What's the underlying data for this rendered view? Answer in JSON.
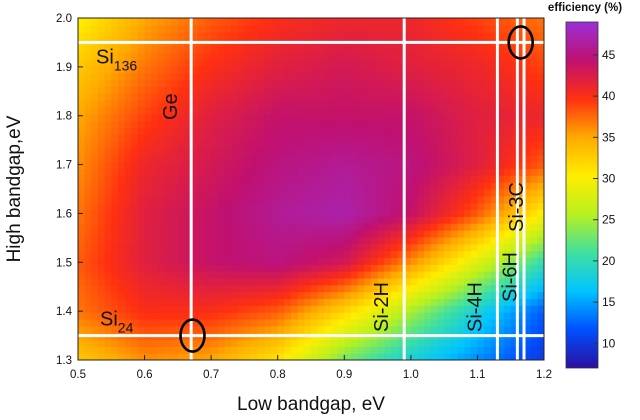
{
  "chart_data": {
    "type": "heatmap",
    "xlabel": "Low bandgap, eV",
    "ylabel": "High bandgap,eV",
    "xlim": [
      0.5,
      1.2
    ],
    "ylim": [
      1.3,
      2.0
    ],
    "x_ticks": [
      "0.5",
      "0.6",
      "0.7",
      "0.8",
      "0.9",
      "1.0",
      "1.1",
      "1.2"
    ],
    "y_ticks": [
      "1.3",
      "1.4",
      "1.5",
      "1.6",
      "1.7",
      "1.8",
      "1.9",
      "2.0"
    ],
    "colorbar": {
      "title": "efficiency (%)",
      "range": [
        7,
        49
      ],
      "ticks": [
        "10",
        "15",
        "20",
        "25",
        "30",
        "35",
        "40",
        "45"
      ],
      "colors": [
        "#2b0fa0",
        "#0050ff",
        "#00c4ff",
        "#40e0a0",
        "#b8f020",
        "#ffee00",
        "#ffaa00",
        "#ff3010",
        "#c01070",
        "#9a30d8"
      ]
    },
    "peak": {
      "x": 0.95,
      "y": 1.62,
      "value": 48
    },
    "efficiency_grid": {
      "x": [
        0.5,
        0.6,
        0.7,
        0.8,
        0.9,
        1.0,
        1.1,
        1.2
      ],
      "y": [
        1.3,
        1.4,
        1.5,
        1.6,
        1.7,
        1.8,
        1.9,
        2.0
      ],
      "values": [
        [
          33,
          36,
          35,
          31,
          23,
          18,
          14,
          10
        ],
        [
          37,
          40,
          40,
          38,
          32,
          25,
          18,
          12
        ],
        [
          38,
          42,
          44,
          45,
          43,
          36,
          28,
          20
        ],
        [
          37,
          42,
          44,
          46,
          47,
          44,
          38,
          30
        ],
        [
          36,
          41,
          43,
          45,
          46,
          45,
          42,
          38
        ],
        [
          35,
          39,
          42,
          44,
          44,
          44,
          42,
          41
        ],
        [
          33,
          37,
          40,
          42,
          43,
          42,
          41,
          39
        ],
        [
          30,
          35,
          38,
          40,
          41,
          41,
          39,
          37
        ]
      ]
    },
    "vertical_lines": [
      {
        "label": "Ge",
        "x": 0.67
      },
      {
        "label": "Si-2H",
        "x": 0.99
      },
      {
        "label": "Si-4H",
        "x": 1.13
      },
      {
        "label": "Si-6H",
        "x": 1.16
      },
      {
        "label": "Si-3C",
        "x": 1.17
      }
    ],
    "horizontal_lines": [
      {
        "label": "Si",
        "sub": "136",
        "y": 1.95
      },
      {
        "label": "Si",
        "sub": "24",
        "y": 1.35
      }
    ],
    "markers": [
      {
        "shape": "ellipse",
        "x": 0.672,
        "y": 1.35
      },
      {
        "shape": "ellipse",
        "x": 1.165,
        "y": 1.95
      }
    ]
  }
}
